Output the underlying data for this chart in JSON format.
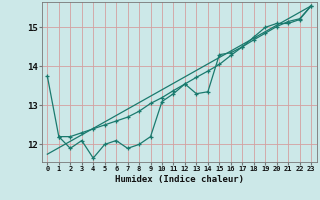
{
  "xlabel": "Humidex (Indice chaleur)",
  "background_color": "#cce8e8",
  "grid_color": "#d4a0a0",
  "line_color": "#1a7a6e",
  "xlim": [
    -0.5,
    23.5
  ],
  "ylim": [
    11.55,
    15.65
  ],
  "yticks": [
    12,
    13,
    14,
    15
  ],
  "xticks": [
    0,
    1,
    2,
    3,
    4,
    5,
    6,
    7,
    8,
    9,
    10,
    11,
    12,
    13,
    14,
    15,
    16,
    17,
    18,
    19,
    20,
    21,
    22,
    23
  ],
  "line1_x": [
    0,
    1,
    2,
    3,
    4,
    5,
    6,
    7,
    8,
    9,
    10,
    11,
    12,
    13,
    14,
    15,
    16,
    17,
    18,
    19,
    20,
    21,
    22,
    23
  ],
  "line1_y": [
    13.75,
    12.2,
    11.9,
    12.1,
    11.65,
    12.0,
    12.1,
    11.9,
    12.0,
    12.2,
    13.1,
    13.3,
    13.55,
    13.3,
    13.35,
    14.3,
    14.35,
    14.5,
    14.75,
    15.0,
    15.1,
    15.1,
    15.2,
    15.55
  ],
  "line2_x": [
    1,
    2,
    3,
    4,
    5,
    6,
    7,
    8,
    9,
    10,
    11,
    12,
    13,
    14,
    15,
    16,
    17,
    18,
    19,
    20,
    21,
    22,
    23
  ],
  "line2_y": [
    12.2,
    12.2,
    12.3,
    12.4,
    12.5,
    12.6,
    12.7,
    12.85,
    13.05,
    13.2,
    13.38,
    13.55,
    13.72,
    13.88,
    14.05,
    14.28,
    14.5,
    14.68,
    14.85,
    15.02,
    15.15,
    15.22,
    15.55
  ],
  "trend_x": [
    0,
    23
  ],
  "trend_y": [
    11.75,
    15.55
  ]
}
